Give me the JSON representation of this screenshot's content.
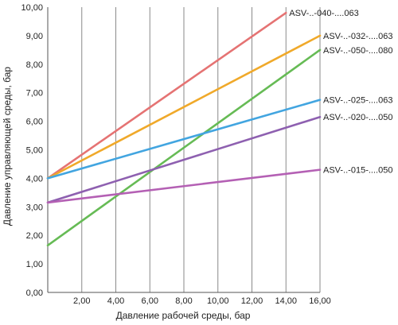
{
  "chart_data": {
    "type": "line",
    "title": "",
    "xlabel": "Давление рабочей среды, бар",
    "ylabel": "Давление управляющей среды, бар",
    "xlim": [
      0,
      16
    ],
    "ylim": [
      0,
      10
    ],
    "x_ticks": [
      "2,00",
      "4,00",
      "6,00",
      "8,00",
      "10,00",
      "12,00",
      "14,00",
      "16,00"
    ],
    "x_tick_values": [
      2,
      4,
      6,
      8,
      10,
      12,
      14,
      16
    ],
    "y_ticks": [
      "0,00",
      "1,00",
      "2,00",
      "3,00",
      "4,00",
      "5,00",
      "6,00",
      "7,00",
      "8,00",
      "9,00",
      "10,00"
    ],
    "y_tick_values": [
      0,
      1,
      2,
      3,
      4,
      5,
      6,
      7,
      8,
      9,
      10
    ],
    "grid": "vertical",
    "series": [
      {
        "name": "ASV-..-040-....063",
        "color": "#e57373",
        "x": [
          0,
          14
        ],
        "y": [
          4.0,
          9.8
        ]
      },
      {
        "name": "ASV-..-032-....063",
        "color": "#f0a92a",
        "x": [
          0,
          16
        ],
        "y": [
          4.0,
          9.0
        ]
      },
      {
        "name": "ASV-..-050-....080",
        "color": "#66bb55",
        "x": [
          0,
          16
        ],
        "y": [
          1.65,
          8.5
        ]
      },
      {
        "name": "ASV-..-025-....063",
        "color": "#42a5e0",
        "x": [
          0,
          16
        ],
        "y": [
          4.0,
          6.75
        ]
      },
      {
        "name": "ASV-..-020-....050",
        "color": "#8e60b0",
        "x": [
          0,
          16
        ],
        "y": [
          3.15,
          6.15
        ]
      },
      {
        "name": "ASV-..-015-....050",
        "color": "#b460b4",
        "x": [
          0,
          16
        ],
        "y": [
          3.15,
          4.3
        ]
      }
    ]
  }
}
